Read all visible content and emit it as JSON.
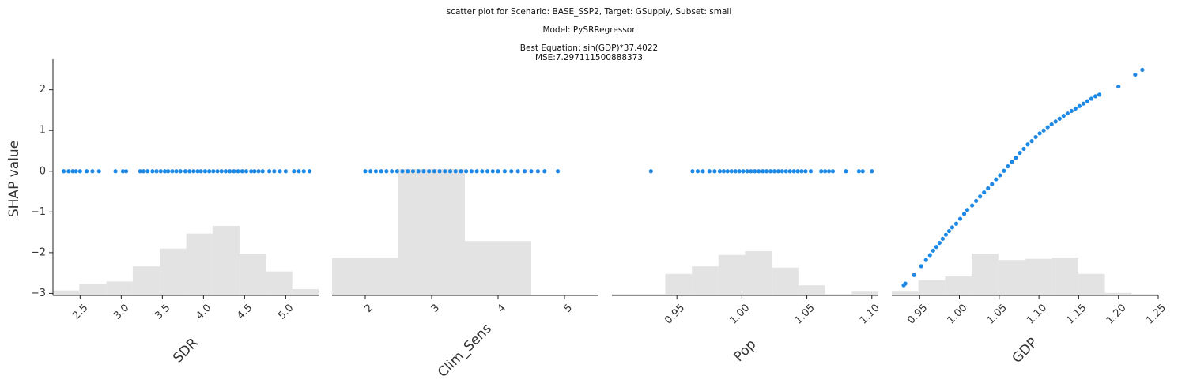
{
  "header": {
    "line1": "scatter plot for Scenario: BASE_SSP2, Target: GSupply, Subset: small",
    "line2": "Model: PySRRegressor",
    "line3": "Best Equation: sin(GDP)*37.4022",
    "line4": "MSE:7.297111500888373"
  },
  "colors": {
    "points": "#1e88e5",
    "histogram": "#e3e3e3",
    "axis": "#222222"
  },
  "chart_data": [
    {
      "type": "scatter",
      "feature": "SDR",
      "xlabel": "SDR",
      "ylabel": "SHAP value",
      "xlim": [
        2.17,
        5.4
      ],
      "ylim": [
        -3.05,
        2.75
      ],
      "xticks": [
        {
          "value": 2.5,
          "label": "2.5"
        },
        {
          "value": 3.0,
          "label": "3.0"
        },
        {
          "value": 3.5,
          "label": "3.5"
        },
        {
          "value": 4.0,
          "label": "4.0"
        },
        {
          "value": 4.5,
          "label": "4.5"
        },
        {
          "value": 5.0,
          "label": "5.0"
        }
      ],
      "yticks": [
        {
          "value": 2,
          "label": "2"
        },
        {
          "value": 1,
          "label": "1"
        },
        {
          "value": 0,
          "label": "0"
        },
        {
          "value": -1,
          "label": "−1"
        },
        {
          "value": -2,
          "label": "−2"
        },
        {
          "value": -3,
          "label": "−3"
        }
      ],
      "x": [
        2.3,
        2.36,
        2.41,
        2.45,
        2.5,
        2.58,
        2.65,
        2.73,
        2.93,
        3.02,
        3.06,
        3.23,
        3.27,
        3.32,
        3.38,
        3.43,
        3.48,
        3.53,
        3.57,
        3.62,
        3.67,
        3.72,
        3.78,
        3.83,
        3.88,
        3.93,
        3.97,
        4.02,
        4.07,
        4.12,
        4.17,
        4.22,
        4.27,
        4.32,
        4.37,
        4.42,
        4.47,
        4.52,
        4.58,
        4.62,
        4.67,
        4.72,
        4.8,
        4.86,
        4.93,
        5.0,
        5.1,
        5.16,
        5.22,
        5.29
      ],
      "y": [
        0,
        0,
        0,
        0,
        0,
        0,
        0,
        0,
        0,
        0,
        0,
        0,
        0,
        0,
        0,
        0,
        0,
        0,
        0,
        0,
        0,
        0,
        0,
        0,
        0,
        0,
        0,
        0,
        0,
        0,
        0,
        0,
        0,
        0,
        0,
        0,
        0,
        0,
        0,
        0,
        0,
        0,
        0,
        0,
        0,
        0,
        0,
        0,
        0,
        0
      ],
      "histogram": {
        "edges": [
          2.17,
          2.49,
          2.82,
          3.14,
          3.47,
          3.79,
          4.11,
          4.44,
          4.76,
          5.08,
          5.4
        ],
        "heights": [
          0.04,
          0.09,
          0.11,
          0.23,
          0.37,
          0.49,
          0.55,
          0.33,
          0.19,
          0.05
        ]
      }
    },
    {
      "type": "scatter",
      "feature": "Clim_Sens",
      "xlabel": "Clim_Sens",
      "xlim": [
        1.5,
        5.5
      ],
      "ylim": [
        -3.05,
        2.75
      ],
      "xticks": [
        {
          "value": 2,
          "label": "2"
        },
        {
          "value": 3,
          "label": "3"
        },
        {
          "value": 4,
          "label": "4"
        },
        {
          "value": 5,
          "label": "5"
        }
      ],
      "x": [
        2.0,
        2.08,
        2.16,
        2.24,
        2.32,
        2.4,
        2.48,
        2.56,
        2.64,
        2.72,
        2.8,
        2.88,
        2.96,
        3.04,
        3.12,
        3.2,
        3.28,
        3.36,
        3.44,
        3.52,
        3.6,
        3.68,
        3.76,
        3.84,
        3.92,
        4.0,
        4.1,
        4.2,
        4.3,
        4.4,
        4.5,
        4.6,
        4.7,
        4.9
      ],
      "y": [
        0,
        0,
        0,
        0,
        0,
        0,
        0,
        0,
        0,
        0,
        0,
        0,
        0,
        0,
        0,
        0,
        0,
        0,
        0,
        0,
        0,
        0,
        0,
        0,
        0,
        0,
        0,
        0,
        0,
        0,
        0,
        0,
        0,
        0
      ],
      "histogram": {
        "edges": [
          1.5,
          2.5,
          3.5,
          4.5,
          5.5
        ],
        "heights": [
          0.3,
          1.0,
          0.43,
          0.0
        ]
      }
    },
    {
      "type": "scatter",
      "feature": "Pop",
      "xlabel": "Pop",
      "xlim": [
        0.9,
        1.105
      ],
      "ylim": [
        -3.05,
        2.75
      ],
      "xticks": [
        {
          "value": 0.95,
          "label": "0.95"
        },
        {
          "value": 1.0,
          "label": "1.00"
        },
        {
          "value": 1.05,
          "label": "1.05"
        },
        {
          "value": 1.1,
          "label": "1.10"
        }
      ],
      "x": [
        0.93,
        0.962,
        0.966,
        0.97,
        0.975,
        0.979,
        0.983,
        0.986,
        0.989,
        0.992,
        0.995,
        0.998,
        1.001,
        1.004,
        1.007,
        1.01,
        1.013,
        1.016,
        1.019,
        1.022,
        1.025,
        1.028,
        1.031,
        1.034,
        1.037,
        1.04,
        1.043,
        1.046,
        1.049,
        1.053,
        1.061,
        1.064,
        1.067,
        1.07,
        1.08,
        1.09,
        1.093,
        1.1
      ],
      "y": [
        0,
        0,
        0,
        0,
        0,
        0,
        0,
        0,
        0,
        0,
        0,
        0,
        0,
        0,
        0,
        0,
        0,
        0,
        0,
        0,
        0,
        0,
        0,
        0,
        0,
        0,
        0,
        0,
        0,
        0,
        0,
        0,
        0,
        0,
        0,
        0,
        0,
        0
      ],
      "histogram": {
        "edges": [
          0.9,
          0.9205,
          0.941,
          0.9615,
          0.982,
          1.0025,
          1.023,
          1.0435,
          1.064,
          1.0845,
          1.105
        ],
        "heights": [
          0.01,
          0.01,
          0.17,
          0.23,
          0.32,
          0.35,
          0.22,
          0.08,
          0.01,
          0.03
        ]
      }
    },
    {
      "type": "scatter",
      "feature": "GDP",
      "xlabel": "GDP",
      "xlim": [
        0.915,
        1.25
      ],
      "ylim": [
        -3.05,
        2.75
      ],
      "xticks": [
        {
          "value": 0.95,
          "label": "0.95"
        },
        {
          "value": 1.0,
          "label": "1.00"
        },
        {
          "value": 1.05,
          "label": "1.05"
        },
        {
          "value": 1.1,
          "label": "1.10"
        },
        {
          "value": 1.15,
          "label": "1.15"
        },
        {
          "value": 1.2,
          "label": "1.20"
        },
        {
          "value": 1.25,
          "label": "1.25"
        }
      ],
      "x": [
        0.93,
        0.932,
        0.943,
        0.952,
        0.958,
        0.963,
        0.967,
        0.971,
        0.975,
        0.979,
        0.983,
        0.987,
        0.991,
        0.996,
        1.001,
        1.006,
        1.01,
        1.016,
        1.021,
        1.026,
        1.031,
        1.036,
        1.041,
        1.046,
        1.051,
        1.056,
        1.061,
        1.066,
        1.071,
        1.076,
        1.081,
        1.086,
        1.091,
        1.096,
        1.101,
        1.106,
        1.111,
        1.116,
        1.121,
        1.126,
        1.131,
        1.136,
        1.141,
        1.146,
        1.151,
        1.156,
        1.161,
        1.166,
        1.171,
        1.176,
        1.2,
        1.221,
        1.23
      ],
      "y": [
        -2.8,
        -2.76,
        -2.55,
        -2.33,
        -2.18,
        -2.06,
        -1.95,
        -1.86,
        -1.76,
        -1.66,
        -1.56,
        -1.47,
        -1.38,
        -1.29,
        -1.17,
        -1.05,
        -0.95,
        -0.84,
        -0.73,
        -0.62,
        -0.52,
        -0.42,
        -0.32,
        -0.2,
        -0.1,
        0.01,
        0.12,
        0.23,
        0.33,
        0.45,
        0.55,
        0.66,
        0.74,
        0.84,
        0.93,
        1.0,
        1.08,
        1.15,
        1.22,
        1.29,
        1.36,
        1.42,
        1.48,
        1.54,
        1.6,
        1.66,
        1.72,
        1.78,
        1.84,
        1.88,
        2.08,
        2.37,
        2.49
      ],
      "histogram": {
        "edges": [
          0.915,
          0.9485,
          0.982,
          1.0155,
          1.049,
          1.0825,
          1.116,
          1.1495,
          1.183,
          1.2165,
          1.25
        ],
        "heights": [
          0.03,
          0.12,
          0.15,
          0.33,
          0.28,
          0.29,
          0.3,
          0.17,
          0.02,
          0.01
        ]
      }
    }
  ]
}
